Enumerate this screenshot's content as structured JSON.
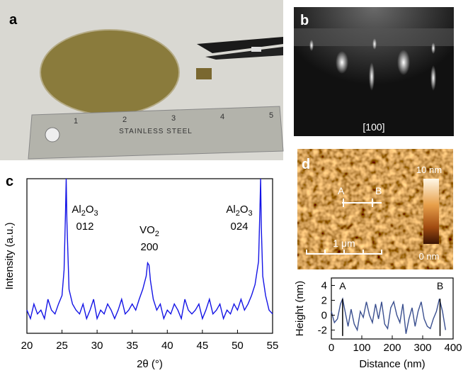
{
  "panels": {
    "a": {
      "label": "a",
      "ruler_text": "STAINLESS STEEL",
      "ruler_numbers": [
        "1",
        "2",
        "3",
        "4",
        "5"
      ]
    },
    "b": {
      "label": "b",
      "caption": "[100]"
    },
    "d": {
      "label": "d",
      "colorbar_max": "10 nm",
      "colorbar_min": "0 nm",
      "scale_bar": "1 μm",
      "point_a": "A",
      "point_b": "B"
    }
  },
  "chart_data": [
    {
      "type": "line",
      "panel_label": "c",
      "x_label": "2θ (°)",
      "y_label": "Intensity (a.u.)",
      "log_y": true,
      "xlim": [
        20,
        55
      ],
      "xticks": [
        20,
        25,
        30,
        35,
        40,
        45,
        50,
        55
      ],
      "ylim": [
        1,
        1500
      ],
      "annotations": [
        {
          "formula": [
            "Al",
            "2",
            "O",
            "3"
          ],
          "index": "012"
        },
        {
          "formula": [
            "VO",
            "2"
          ],
          "index": "200"
        },
        {
          "formula": [
            "Al",
            "2",
            "O",
            "3"
          ],
          "index": "024"
        }
      ],
      "series": [
        {
          "color": "#1414e6",
          "x": [
            20,
            20.5,
            21,
            21.5,
            22,
            22.5,
            23,
            23.5,
            24,
            24.5,
            25,
            25.3,
            25.5,
            25.6,
            25.7,
            26,
            26.5,
            27,
            27.5,
            28,
            28.5,
            29,
            29.5,
            30,
            30.5,
            31,
            31.5,
            32,
            32.5,
            33,
            33.5,
            34,
            34.5,
            35,
            35.5,
            36,
            36.5,
            37,
            37.2,
            37.4,
            37.6,
            38,
            38.5,
            39,
            39.5,
            40,
            40.5,
            41,
            41.5,
            42,
            42.5,
            43,
            43.5,
            44,
            44.5,
            45,
            45.5,
            46,
            46.5,
            47,
            47.5,
            48,
            48.5,
            49,
            49.5,
            50,
            50.5,
            51,
            51.5,
            52,
            52.5,
            53,
            53.2,
            53.3,
            53.4,
            53.6,
            54,
            54.5,
            55
          ],
          "values": [
            3,
            2,
            4,
            2.5,
            3,
            2,
            5,
            3,
            2.5,
            4,
            6,
            20,
            300,
            1500,
            200,
            8,
            4,
            3,
            2.5,
            4,
            2,
            3,
            5,
            2,
            3,
            2.5,
            4,
            3,
            2,
            3,
            5,
            2.5,
            3,
            4,
            3,
            5,
            8,
            15,
            28,
            25,
            12,
            5,
            3,
            4,
            2,
            3,
            2.5,
            4,
            3,
            2,
            5,
            3,
            2.5,
            3,
            4,
            2,
            3,
            5,
            2.5,
            3,
            4,
            2,
            3,
            2.5,
            4,
            3,
            5,
            3,
            4,
            6,
            10,
            30,
            400,
            1500,
            150,
            15,
            6,
            3,
            2.5
          ]
        }
      ]
    },
    {
      "type": "line",
      "x_label": "Distance (nm)",
      "y_label": "Height (nm)",
      "xlim": [
        0,
        400
      ],
      "xticks": [
        0,
        100,
        200,
        300,
        400
      ],
      "ylim": [
        -3.2,
        5
      ],
      "yticks": [
        -2,
        0,
        2,
        4
      ],
      "markers": [
        {
          "label": "A",
          "x": 37
        },
        {
          "label": "B",
          "x": 357
        }
      ],
      "series": [
        {
          "color": "#3a4f8f",
          "x": [
            0,
            10,
            20,
            30,
            37,
            45,
            55,
            65,
            75,
            85,
            95,
            105,
            115,
            125,
            135,
            145,
            155,
            165,
            175,
            185,
            195,
            205,
            215,
            225,
            235,
            245,
            255,
            265,
            275,
            285,
            295,
            305,
            315,
            325,
            335,
            345,
            355,
            365,
            375
          ],
          "values": [
            0.5,
            -1,
            -0.5,
            1.5,
            2.2,
            0.5,
            -1.5,
            0.8,
            -1.2,
            -2,
            0.5,
            -0.3,
            1.8,
            0,
            -1,
            1.5,
            -0.5,
            1.8,
            -1.2,
            -1.8,
            1,
            1.8,
            0,
            -1,
            1.5,
            -2.5,
            -0.5,
            1,
            -1.5,
            0.5,
            1.8,
            -0.5,
            -1.5,
            -1.8,
            -0.5,
            0.5,
            2.2,
            0.5,
            -2
          ]
        }
      ]
    }
  ]
}
